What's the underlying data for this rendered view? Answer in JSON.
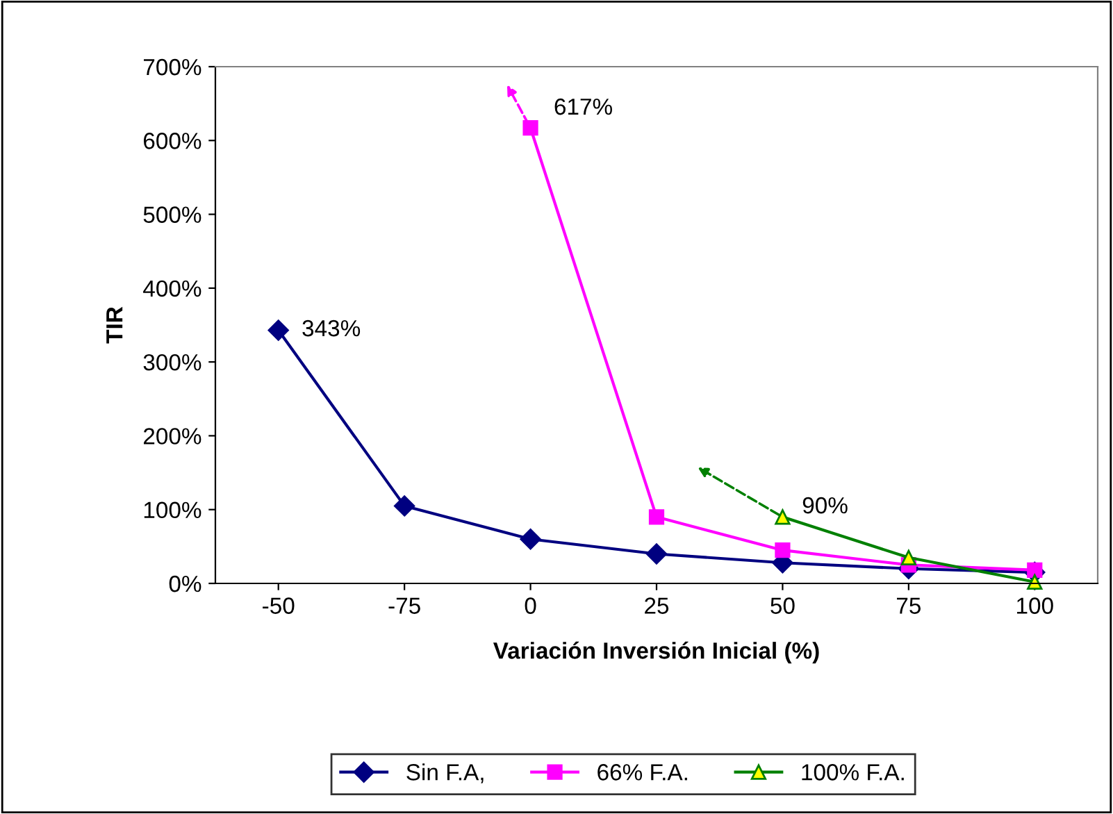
{
  "chart_data": {
    "type": "line",
    "xlabel": "Variación Inversión Inicial (%)",
    "ylabel": "TIR",
    "categories": [
      "-50",
      "-75",
      "0",
      "25",
      "50",
      "75",
      "100"
    ],
    "series": [
      {
        "name": "Sin F.A,",
        "color": "#000080",
        "marker": "diamond",
        "values": [
          343,
          105,
          60,
          40,
          28,
          20,
          15
        ]
      },
      {
        "name": "66% F.A.",
        "color": "#ff00ff",
        "marker": "square",
        "values": [
          null,
          null,
          617,
          90,
          45,
          25,
          18
        ]
      },
      {
        "name": "100% F.A.",
        "color": "#008000",
        "marker": "triangle",
        "values": [
          null,
          null,
          null,
          null,
          90,
          35,
          2
        ]
      }
    ],
    "ylim": [
      0,
      700
    ],
    "yticks": [
      {
        "value": 0,
        "label": "0%"
      },
      {
        "value": 100,
        "label": "100%"
      },
      {
        "value": 200,
        "label": "200%"
      },
      {
        "value": 300,
        "label": "300%"
      },
      {
        "value": 400,
        "label": "400%"
      },
      {
        "value": 500,
        "label": "500%"
      },
      {
        "value": 600,
        "label": "600%"
      },
      {
        "value": 700,
        "label": "700%"
      }
    ],
    "annotations": [
      {
        "text": "343%",
        "x": "-50",
        "y": 343
      },
      {
        "text": "617%",
        "x": "0",
        "y": 617
      },
      {
        "text": "90%",
        "x": "50",
        "y": 90
      }
    ],
    "legend": "bottom",
    "grid": false,
    "line_style": "solid"
  }
}
